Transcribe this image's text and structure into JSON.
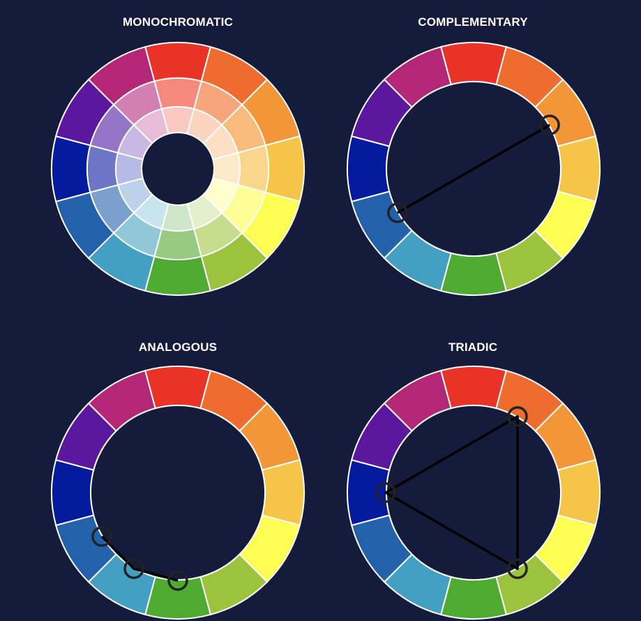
{
  "background_color": "#151b3a",
  "separator_color": "#ffffff",
  "marker_color": "#222222",
  "line_color": "#000000",
  "hues": [
    {
      "name": "red",
      "color": "#e83326"
    },
    {
      "name": "red-orange",
      "color": "#ee6c2e"
    },
    {
      "name": "orange",
      "color": "#f29637"
    },
    {
      "name": "yellow-orange",
      "color": "#f6c548"
    },
    {
      "name": "yellow",
      "color": "#fefd54"
    },
    {
      "name": "yellow-green",
      "color": "#9bc33d"
    },
    {
      "name": "green",
      "color": "#4eaa31"
    },
    {
      "name": "blue-green",
      "color": "#43a0c2"
    },
    {
      "name": "blue",
      "color": "#2361ab"
    },
    {
      "name": "blue-violet",
      "color": "#041b9e"
    },
    {
      "name": "violet",
      "color": "#5b189e"
    },
    {
      "name": "red-violet",
      "color": "#b42776"
    }
  ],
  "tint_rings": {
    "middle": [
      "#f58a7c",
      "#f6a67a",
      "#f8bb7c",
      "#fad58c",
      "#fffe96",
      "#c5dd8c",
      "#98ca82",
      "#90c7d9",
      "#7aa0cf",
      "#6c75c6",
      "#9475c8",
      "#d27fb3"
    ],
    "inner": [
      "#fbc8c2",
      "#fbd4c0",
      "#fcdfc4",
      "#fdeac9",
      "#fffecd",
      "#e3efcd",
      "#cde5c8",
      "#c8e4ef",
      "#bed1ea",
      "#b6bae6",
      "#c8b8e4",
      "#e8bcd8"
    ]
  },
  "wheels": [
    {
      "id": "monochromatic",
      "title": "MONOCHROMATIC",
      "type": "monochromatic",
      "marked_hues": []
    },
    {
      "id": "complementary",
      "title": "COMPLEMENTARY",
      "type": "complementary",
      "marked_hues": [
        "orange",
        "blue"
      ]
    },
    {
      "id": "analogous",
      "title": "ANALOGOUS",
      "type": "analogous",
      "marked_hues": [
        "blue",
        "blue-green",
        "green"
      ]
    },
    {
      "id": "triadic",
      "title": "TRIADIC",
      "type": "triadic",
      "marked_hues": [
        "red-orange",
        "yellow-green",
        "blue-violet"
      ]
    }
  ]
}
